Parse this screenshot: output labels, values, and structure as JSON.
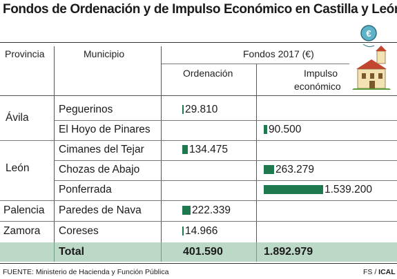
{
  "title": "Fondos de Ordenación y de Impulso Económico en Castilla y León",
  "headers": {
    "provincia": "Provincia",
    "municipio": "Municipio",
    "fondos": "Fondos 2017 (€)",
    "ordenacion": "Ordenación",
    "impulso_line1": "Impulso",
    "impulso_line2": "económico"
  },
  "provinces": [
    {
      "name": "Ávila"
    },
    {
      "name": "León"
    },
    {
      "name": "Palencia"
    },
    {
      "name": "Zamora"
    }
  ],
  "rows": [
    {
      "municipio": "Peguerinos",
      "ordenacion": "29.810",
      "impulso": ""
    },
    {
      "municipio": "El Hoyo de Pinares",
      "ordenacion": "",
      "impulso": "90.500"
    },
    {
      "municipio": "Cimanes del Tejar",
      "ordenacion": "134.475",
      "impulso": ""
    },
    {
      "municipio": "Chozas de Abajo",
      "ordenacion": "",
      "impulso": "263.279"
    },
    {
      "municipio": "Ponferrada",
      "ordenacion": "",
      "impulso": "1.539.200"
    },
    {
      "municipio": "Paredes de Nava",
      "ordenacion": "222.339",
      "impulso": ""
    },
    {
      "municipio": "Coreses",
      "ordenacion": "14.966",
      "impulso": ""
    }
  ],
  "total": {
    "label": "Total",
    "ordenacion": "401.590",
    "impulso": "1.892.979"
  },
  "footer": {
    "source": "FUENTE: Ministerio de Hacienda y Función Pública",
    "credit_a": "FS / ",
    "credit_b": "ICAL"
  },
  "icons": {
    "coin": "euro-coin-icon",
    "building": "house-icon"
  },
  "colors": {
    "bar": "#1e7a4e",
    "total_band": "#bcd9c8",
    "rule": "#333333"
  },
  "chart_data": {
    "type": "table",
    "title": "Fondos de Ordenación y de Impulso Económico en Castilla y León",
    "columns": [
      "Provincia",
      "Municipio",
      "Ordenación",
      "Impulso económico"
    ],
    "series": [
      {
        "name": "Ordenación",
        "values": [
          29810,
          null,
          134475,
          null,
          null,
          222339,
          14966
        ]
      },
      {
        "name": "Impulso económico",
        "values": [
          null,
          90500,
          null,
          263279,
          1539200,
          null,
          null
        ]
      }
    ],
    "categories": [
      "Peguerinos",
      "El Hoyo de Pinares",
      "Cimanes del Tejar",
      "Chozas de Abajo",
      "Ponferrada",
      "Paredes de Nava",
      "Coreses"
    ],
    "provinces": [
      "Ávila",
      "Ávila",
      "León",
      "León",
      "León",
      "Palencia",
      "Zamora"
    ],
    "totals": {
      "Ordenación": 401590,
      "Impulso económico": 1892979
    }
  }
}
